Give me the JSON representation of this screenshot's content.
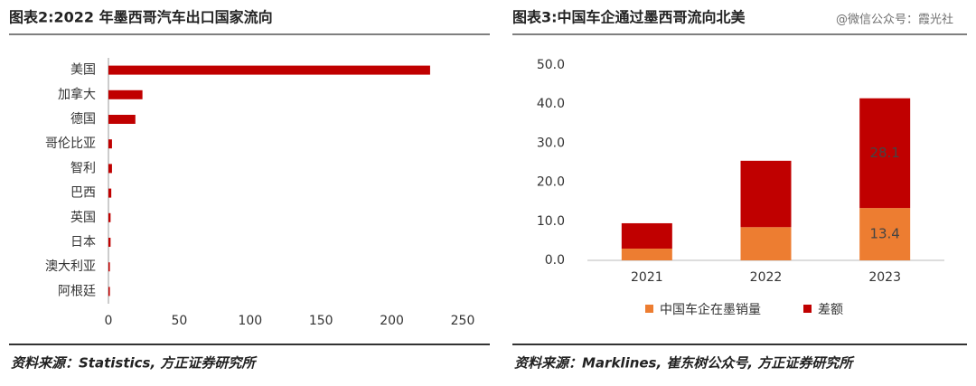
{
  "chart_data": [
    {
      "type": "bar",
      "orientation": "horizontal",
      "title": "图表2:2022 年墨西哥汽车出口国家流向",
      "categories": [
        "美国",
        "加拿大",
        "德国",
        "哥伦比亚",
        "智利",
        "巴西",
        "英国",
        "日本",
        "澳大利亚",
        "阿根廷"
      ],
      "values": [
        227,
        24,
        19,
        2.5,
        2.5,
        2,
        1.5,
        1.5,
        1,
        1
      ],
      "color": "#c00000",
      "xlim": [
        0,
        250
      ],
      "xticks": [
        0,
        50,
        100,
        150,
        200,
        250
      ],
      "source": "资料来源：Statistics, 方正证券研究所"
    },
    {
      "type": "stacked_bar",
      "title": "图表3:中国车企通过墨西哥流向北美",
      "watermark": "@微信公众号：霞光社",
      "categories": [
        "2021",
        "2022",
        "2023"
      ],
      "series": [
        {
          "name": "中国车企在墨销量",
          "color": "#ed7d31",
          "values": [
            3,
            8.5,
            13.4
          ],
          "value_labels": [
            null,
            null,
            "13.4"
          ]
        },
        {
          "name": "差额",
          "color": "#c00000",
          "values": [
            6.5,
            17,
            28.1
          ],
          "value_labels": [
            null,
            null,
            "28.1"
          ]
        }
      ],
      "ylim": [
        0,
        50
      ],
      "yticks": [
        {
          "value": 0,
          "label": "0.0"
        },
        {
          "value": 10,
          "label": "10.0"
        },
        {
          "value": 20,
          "label": "20.0"
        },
        {
          "value": 30,
          "label": "30.0"
        },
        {
          "value": 40,
          "label": "40.0"
        },
        {
          "value": 50,
          "label": "50.0"
        }
      ],
      "source": "资料来源：Marklines, 崔东树公众号, 方正证券研究所"
    }
  ]
}
